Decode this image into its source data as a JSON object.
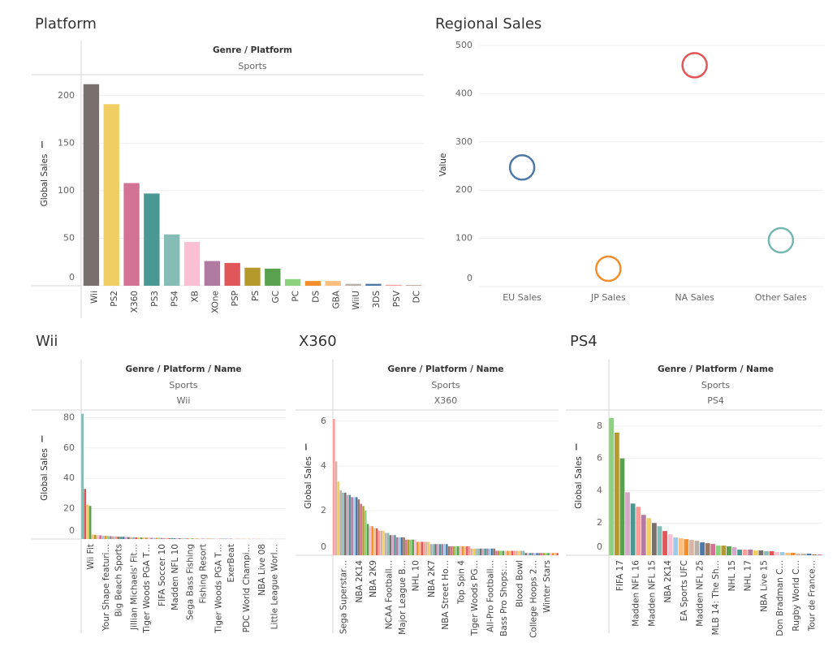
{
  "chart_data": [
    {
      "type": "bar",
      "title": "Platform",
      "headers": [
        "Genre / Platform",
        "Sports"
      ],
      "y_label": "Global Sales",
      "categories": [
        "Wii",
        "PS2",
        "X360",
        "PS3",
        "PS4",
        "XB",
        "XOne",
        "PSP",
        "PS",
        "GC",
        "PC",
        "DS",
        "GBA",
        "WiiU",
        "3DS",
        "PSV",
        "DC"
      ],
      "values": [
        212,
        191,
        108,
        97,
        54,
        46,
        26,
        24,
        19,
        18,
        7,
        5,
        5,
        2,
        2,
        1,
        0.5
      ],
      "colors": [
        "#79706e",
        "#f1ce63",
        "#d37295",
        "#499894",
        "#86bcb6",
        "#fabfd2",
        "#b07aa1",
        "#e15759",
        "#b6992d",
        "#59a14f",
        "#8cd17d",
        "#f28e2b",
        "#ffbe7d",
        "#bab0ac",
        "#4e79a7",
        "#ff9d9a",
        "#9d7660"
      ],
      "ylim": [
        0,
        222
      ],
      "yticks": [
        0,
        50,
        100,
        150,
        200
      ],
      "grid": true
    },
    {
      "type": "scatter",
      "title": "Regional Sales",
      "y_label": "Value",
      "categories": [
        "EU Sales",
        "JP Sales",
        "NA Sales",
        "Other Sales"
      ],
      "values": [
        247,
        37,
        459,
        96
      ],
      "colors": [
        "#4e79a7",
        "#f28e2b",
        "#e15759",
        "#76b7b2"
      ],
      "ylim": [
        0,
        505
      ],
      "yticks": [
        0,
        100,
        200,
        300,
        400,
        500
      ],
      "grid": true
    },
    {
      "type": "bar",
      "title": "Wii",
      "headers": [
        "Genre / Platform / Name",
        "Sports",
        "Wii"
      ],
      "y_label": "Global Sales",
      "categories": [
        null,
        null,
        "Wii Fit",
        null,
        null,
        null,
        null,
        null,
        "Your Shape featuri…",
        null,
        null,
        null,
        null,
        "Big Beach Sports",
        null,
        null,
        null,
        null,
        null,
        "Jillian Michaels' Fit…",
        null,
        null,
        null,
        null,
        "Tiger Woods PGA T…",
        null,
        null,
        null,
        null,
        null,
        "FIFA Soccer 10",
        null,
        null,
        null,
        null,
        "Madden NFL 10",
        null,
        null,
        null,
        null,
        null,
        "Sega Bass Fishing",
        null,
        null,
        null,
        null,
        "Fishing Resort",
        null,
        null,
        null,
        null,
        null,
        "Tiger Woods PGA T…",
        null,
        null,
        null,
        null,
        "ExerBeat",
        null,
        null,
        null,
        null,
        null,
        "PDC World Champi…",
        null,
        null,
        null,
        null,
        null,
        "NBA Live 08",
        null,
        null,
        null,
        null,
        "Little League Worl…",
        null,
        null,
        null,
        null,
        null
      ],
      "values": [
        82.5,
        33,
        22.7,
        21.8,
        3,
        2.8,
        2.6,
        2.4,
        2.2,
        2.1,
        2,
        1.9,
        1.8,
        1.7,
        1.6,
        1.5,
        1.5,
        1.4,
        1.3,
        1.2,
        1.2,
        1.1,
        1.1,
        1,
        1,
        0.9,
        0.9,
        0.8,
        0.8,
        0.8,
        0.7,
        0.7,
        0.7,
        0.6,
        0.6,
        0.6,
        0.5,
        0.5,
        0.5,
        0.5,
        0.4,
        0.4,
        0.4,
        0.4,
        0.4,
        0.3,
        0.3,
        0.3,
        0.3,
        0.3,
        0.3,
        0.2,
        0.2,
        0.2,
        0.2,
        0.2,
        0.2,
        0.2,
        0.2,
        0.1,
        0.1,
        0.1,
        0.1,
        0.1,
        0.1,
        0.1,
        0.1,
        0.1,
        0.1,
        0.1,
        0.05,
        0.05,
        0.05,
        0.05,
        0.05,
        0.05,
        0.05,
        0.05,
        0.05,
        0.05
      ],
      "palette": [
        "#86bcb6",
        "#e15759",
        "#f1ce63",
        "#59a14f",
        "#ffbe7d",
        "#b6992d",
        "#fabfd2",
        "#d37295",
        "#a0cbe8",
        "#f28e2b",
        "#8cd17d",
        "#b07aa1",
        "#bab0ac",
        "#ff9d9a",
        "#9d7660",
        "#499894",
        "#4e79a7",
        "#d4a6c8",
        "#79706e",
        "#d7b5a6"
      ],
      "ylim": [
        0,
        85
      ],
      "yticks": [
        0,
        20,
        40,
        60,
        80
      ],
      "grid": true
    },
    {
      "type": "bar",
      "title": "X360",
      "headers": [
        "Genre / Platform / Name",
        "Sports",
        "X360"
      ],
      "y_label": "Global Sales",
      "categories": [
        null,
        null,
        null,
        "Sega Superstar…",
        null,
        null,
        null,
        null,
        null,
        null,
        "NBA 2K14",
        null,
        null,
        null,
        null,
        null,
        "NBA 2K9",
        null,
        null,
        null,
        null,
        null,
        null,
        "NCAA Football…",
        null,
        null,
        null,
        null,
        null,
        "Major League B…",
        null,
        null,
        null,
        null,
        null,
        "NHL 10",
        null,
        null,
        null,
        null,
        null,
        null,
        "NBA 2K7",
        null,
        null,
        null,
        null,
        null,
        "NBA Street Ho…",
        null,
        null,
        null,
        null,
        null,
        null,
        "Top Spin 4",
        null,
        null,
        null,
        null,
        null,
        "Tiger Woods PG…",
        null,
        null,
        null,
        null,
        null,
        null,
        "All-Pro Football…",
        null,
        null,
        null,
        null,
        null,
        "Bass Pro Shops:…",
        null,
        null,
        null,
        null,
        null,
        null,
        "Blood Bowl",
        null,
        null,
        null,
        null,
        null,
        "College Hoops 2…",
        null,
        null,
        null,
        null,
        null,
        "Winter Stars",
        null,
        null,
        null,
        null,
        null,
        null
      ],
      "values": [
        6.1,
        4.2,
        3.3,
        2.9,
        2.8,
        2.8,
        2.7,
        2.7,
        2.6,
        2.6,
        2.6,
        2.5,
        2.3,
        2.2,
        2.0,
        1.4,
        1.3,
        1.3,
        1.2,
        1.2,
        1.1,
        1.1,
        1.1,
        1.0,
        1.0,
        0.9,
        0.9,
        0.9,
        0.8,
        0.8,
        0.8,
        0.8,
        0.7,
        0.7,
        0.7,
        0.7,
        0.7,
        0.6,
        0.6,
        0.6,
        0.6,
        0.6,
        0.6,
        0.5,
        0.5,
        0.5,
        0.5,
        0.5,
        0.5,
        0.5,
        0.5,
        0.4,
        0.4,
        0.4,
        0.4,
        0.4,
        0.4,
        0.4,
        0.4,
        0.4,
        0.4,
        0.3,
        0.3,
        0.3,
        0.3,
        0.3,
        0.3,
        0.3,
        0.3,
        0.3,
        0.3,
        0.3,
        0.2,
        0.2,
        0.2,
        0.2,
        0.2,
        0.2,
        0.2,
        0.2,
        0.2,
        0.2,
        0.2,
        0.2,
        0.2,
        0.1,
        0.1,
        0.1,
        0.1,
        0.1,
        0.1,
        0.1,
        0.1,
        0.1,
        0.1,
        0.1,
        0.1,
        0.1,
        0.1,
        0.1
      ],
      "palette": [
        "#ff9d9a",
        "#d7b5a6",
        "#f1ce63",
        "#bab0ac",
        "#86bcb6",
        "#79706e",
        "#d4a6c8",
        "#499894",
        "#b07aa1",
        "#a0cbe8",
        "#4e79a7",
        "#9d7660",
        "#d37295",
        "#b6992d",
        "#8cd17d",
        "#59a14f",
        "#fabfd2",
        "#f28e2b",
        "#ffbe7d",
        "#e15759"
      ],
      "ylim": [
        0,
        6.5
      ],
      "yticks": [
        0,
        2,
        4,
        6
      ],
      "grid": true
    },
    {
      "type": "bar",
      "title": "PS4",
      "headers": [
        "Genre / Platform / Name",
        "Sports",
        "PS4"
      ],
      "y_label": "Global Sales",
      "categories": [
        null,
        "FIFA 17",
        null,
        null,
        "Madden NFL 16",
        null,
        null,
        "Madden NFL 15",
        null,
        null,
        "NBA 2K14",
        null,
        null,
        "EA Sports UFC",
        null,
        null,
        "Madden NFL 25",
        null,
        null,
        "MLB 14: The Sh…",
        null,
        null,
        "NHL 15",
        null,
        null,
        "NHL 17",
        null,
        null,
        "NBA Live 15",
        null,
        null,
        "Don Bradman C…",
        null,
        null,
        "Rugby World C…",
        null,
        null,
        "Tour de France…",
        null,
        null
      ],
      "values": [
        8.5,
        7.6,
        6.0,
        3.9,
        3.2,
        3.0,
        2.5,
        2.3,
        2.0,
        1.8,
        1.5,
        1.3,
        1.1,
        1.05,
        1.0,
        0.95,
        0.9,
        0.8,
        0.75,
        0.7,
        0.6,
        0.6,
        0.55,
        0.5,
        0.35,
        0.35,
        0.35,
        0.3,
        0.3,
        0.25,
        0.25,
        0.2,
        0.2,
        0.15,
        0.15,
        0.1,
        0.1,
        0.1,
        0.05,
        0.05
      ],
      "palette": [
        "#8cd17d",
        "#b6992d",
        "#59a14f",
        "#d4a6c8",
        "#499894",
        "#ff9d9a",
        "#b07aa1",
        "#f1ce63",
        "#79706e",
        "#86bcb6",
        "#e15759",
        "#fabfd2",
        "#a0cbe8",
        "#ffbe7d",
        "#f28e2b",
        "#d7b5a6",
        "#bab0ac",
        "#4e79a7",
        "#9d7660",
        "#d37295"
      ],
      "ylim": [
        0,
        9
      ],
      "yticks": [
        0,
        2,
        4,
        6,
        8
      ],
      "grid": true
    }
  ]
}
